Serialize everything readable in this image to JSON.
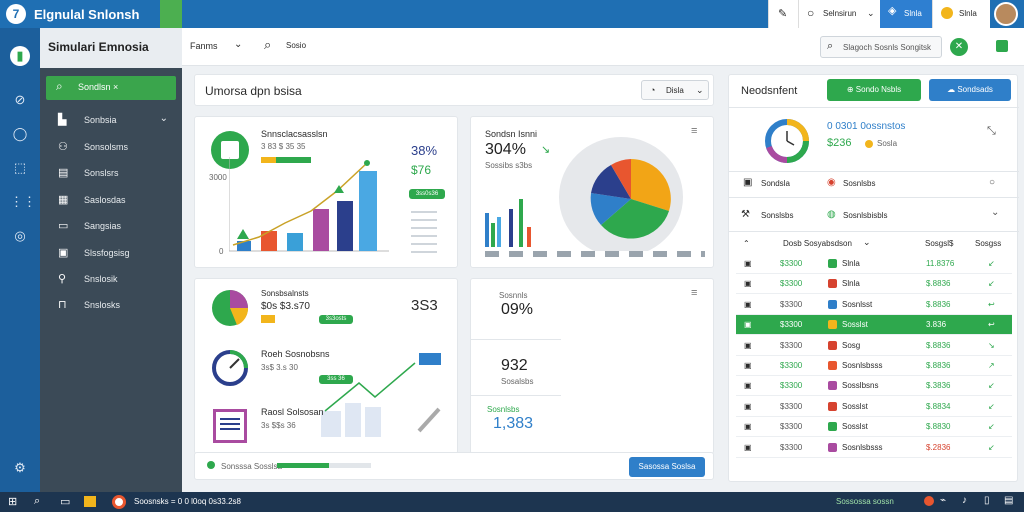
{
  "app": {
    "title": "Elgnulal Snlonsh",
    "subtitle": "Simulari Emnosia"
  },
  "topbar": {
    "selector_label": "Selnsirun",
    "active_tab": "Slnla",
    "user_label": "Slnla"
  },
  "header": {
    "filter_label": "Fanms",
    "search_label": "Sosio",
    "search_field": "Slagoch Sosnls Songitsk"
  },
  "nav": {
    "search_label": "Sondlsn ×",
    "items": [
      "Sonbsia",
      "Sonsolsms",
      "Sonslsrs",
      "Saslosdas",
      "Sangsias",
      "Slssfogsisg",
      "Snslosik",
      "Snslosks"
    ]
  },
  "main": {
    "title": "Umorsa dpn bsisa",
    "filter": "Disla"
  },
  "card1": {
    "title": "Snnsclacsasslsn",
    "sub": "3 83 $ 35 35",
    "stat1": "38%",
    "stat2": "$76",
    "badge": "3ss0s36",
    "ylabel": "3000",
    "y0": "0"
  },
  "card2": {
    "title": "Sondsn Isnni",
    "big": "304%",
    "sub": "Sossibs s3bs"
  },
  "card3": {
    "title": "Sonsbsalnsts",
    "sub": "$0s $3.s70",
    "big": "3S3",
    "badge": "3s3osts"
  },
  "card4": {
    "title": "Roeh Sosnobsns",
    "sub": "3s$ 3.s 30",
    "badge": "3ss 36"
  },
  "card5": {
    "title": "Raosl Solsosan",
    "sub": "3s $$s 36"
  },
  "stats": {
    "a": "09%",
    "b": "932",
    "c": "1,383",
    "a_label": "Sosnnls",
    "b_label": "Sosalsbs",
    "c_label": "Sosnlsbs"
  },
  "footer": {
    "progress_label": "Sonsssa Sosslsa",
    "progress": 0.55,
    "button": "Sasossa Soslsa"
  },
  "right": {
    "title": "Neodsnfent",
    "btn1": "Sondo Nsbls",
    "btn2": "Sondsads",
    "donut_title": "0 0301 0ossnstos",
    "donut_value": "$236",
    "donut_badge": "Sosla",
    "r1a": "Sondsla",
    "r1b": "Sosnlsbs",
    "r2a": "Sonslsbs",
    "r2b": "Sosnlsbisbls",
    "th": [
      "Dosb Sosyabsdson",
      "Sosgsl$",
      "Sosgss"
    ],
    "rows": [
      [
        "$3300",
        "Slnla",
        "11.8376"
      ],
      [
        "$3300",
        "Slnla",
        "$.8836"
      ],
      [
        "$3300",
        "Sosnlsst",
        "$.8836"
      ],
      [
        "$3300",
        "Sosslst",
        "3.836"
      ],
      [
        "$3300",
        "Sosg",
        "$.8836"
      ],
      [
        "$3300",
        "Sosnlsbsss",
        "$.8836"
      ],
      [
        "$3300",
        "Sosslbsns",
        "$.3836"
      ],
      [
        "$3300",
        "Sosslst",
        "$.8834"
      ],
      [
        "$3300",
        "Sosslst",
        "$.8830"
      ],
      [
        "$3300",
        "Sosnlsbsss",
        "$.2836"
      ]
    ]
  },
  "taskbar": {
    "label": "Soosnsks = 0 0 l0oq 0s33.2s8",
    "right": "Sossossa sossn"
  },
  "colors": {
    "accent": "#1f6fb3",
    "green": "#2ea84d",
    "sidebar": "#3b4a57"
  }
}
